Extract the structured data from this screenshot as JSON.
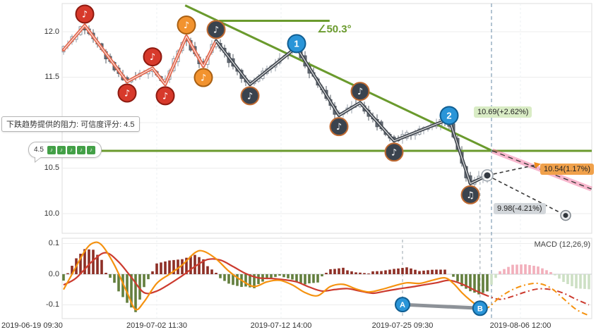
{
  "colors": {
    "trend_green": "#6a9a2d",
    "marker_red": "#d7392b",
    "marker_red_ring": "#8e1a10",
    "marker_orange": "#f2932f",
    "marker_orange_ring": "#a85f12",
    "marker_dark": "#3a434e",
    "marker_dark_ring": "#c06a31",
    "blue_circle": "#2a95d8",
    "blue_circle_ring": "#105e92",
    "zigzag_warm": "#e2654b",
    "zigzag_dark": "#3f454d",
    "hist_pos": "#8e2f26",
    "hist_neg": "#637f3e",
    "hist_proj_pos": "#f2afbb",
    "hist_proj_neg": "#cde0c4",
    "dif_orange": "#f5920f",
    "dea_red": "#cc3b2f",
    "proj_pink": "#f06292",
    "label_green_bg": "#d9ecc5",
    "label_orange_bg": "#f0a14b",
    "label_gray_bg": "#d3d7db",
    "divider": "#7f9cb4",
    "ab_connector": "#8d9298"
  },
  "chart_data": {
    "type": "candlestick",
    "x_axis_labels": [
      "2019-06-19 09:30",
      "2019-07-02 11:30",
      "2019-07-12 14:00",
      "2019-07-25 09:30",
      "2019-08-06 12:00"
    ],
    "price_panel": {
      "y_tick_labels": [
        "12.0",
        "11.5",
        "11.0",
        "10.5",
        "10.0"
      ],
      "y_ticks": [
        12.0,
        11.5,
        11.0,
        10.5,
        10.0
      ],
      "pivots": [
        [
          0,
          11.8
        ],
        [
          5,
          12.07
        ],
        [
          15,
          11.45
        ],
        [
          21,
          11.6
        ],
        [
          24,
          11.42
        ],
        [
          29,
          11.95
        ],
        [
          33,
          11.62
        ],
        [
          36,
          11.9
        ],
        [
          44,
          11.42
        ],
        [
          55,
          11.83
        ],
        [
          65,
          11.08
        ],
        [
          70,
          11.22
        ],
        [
          78,
          10.8
        ],
        [
          91,
          11.04
        ],
        [
          96,
          10.33
        ],
        [
          100,
          10.42
        ]
      ],
      "warm_segments_until": 7,
      "note_markers": [
        {
          "pivot": 1,
          "color": "red",
          "side": "above",
          "glyph": "♪"
        },
        {
          "pivot": 2,
          "color": "red",
          "side": "below",
          "glyph": "♪"
        },
        {
          "pivot": 3,
          "color": "red",
          "side": "above",
          "glyph": "♪"
        },
        {
          "pivot": 4,
          "color": "red",
          "side": "below",
          "glyph": "♪"
        },
        {
          "pivot": 5,
          "color": "orange",
          "side": "above",
          "glyph": "♪"
        },
        {
          "pivot": 6,
          "color": "orange",
          "side": "below",
          "glyph": "♪"
        },
        {
          "pivot": 7,
          "color": "dark",
          "side": "above",
          "glyph": "♪"
        },
        {
          "pivot": 8,
          "color": "dark",
          "side": "below",
          "glyph": "♪"
        },
        {
          "pivot": 10,
          "color": "dark",
          "side": "below",
          "glyph": "♪"
        },
        {
          "pivot": 11,
          "color": "dark",
          "side": "above",
          "glyph": "♪"
        },
        {
          "pivot": 12,
          "color": "dark",
          "side": "below",
          "glyph": "♪"
        },
        {
          "pivot": 14,
          "color": "dark",
          "side": "below",
          "glyph": "♫"
        }
      ],
      "number_markers": [
        {
          "pivot": 9,
          "label": "1"
        },
        {
          "pivot": 13,
          "label": "2"
        }
      ],
      "trendline": {
        "idx1": 28.7,
        "price1": 12.29,
        "idx2": 101.2,
        "price2": 10.69
      },
      "trendline_projection": {
        "idx2": 124.6,
        "price2": 10.27
      },
      "angle_line": {
        "price": 12.12,
        "idx1": 36.7,
        "idx2": 62.8
      },
      "angle_label": "∠50.3°",
      "resistance": {
        "price": 10.69
      },
      "resistance_label": "10.69(+2.62%)",
      "current_price": 10.42,
      "current_divider_idx": 101,
      "projections": [
        {
          "to_idx": 112,
          "to_price": 10.54,
          "style": "arrow",
          "label": "10.54(1.17%)"
        },
        {
          "to_idx": 118.5,
          "to_price": 9.98,
          "style": "rings",
          "label": "9.98(-4.21%)"
        }
      ],
      "tooltip": "下跌趋势提供的阻力: 可信度评分: 4.5",
      "rating": {
        "value": "4.5",
        "stars": 5
      }
    },
    "macd_panel": {
      "label": "MACD (12,26,9)",
      "y_tick_labels": [
        "0.1",
        "0.0",
        "-0.1"
      ],
      "y_ticks": [
        0.1,
        0.0,
        -0.1
      ],
      "projection_start_idx": 100,
      "hist_scale": 1.4,
      "dif": [
        [
          0,
          -0.05
        ],
        [
          2,
          0
        ],
        [
          5,
          0.075
        ],
        [
          7,
          0.102
        ],
        [
          9,
          0.095
        ],
        [
          12,
          0.03
        ],
        [
          15,
          -0.06
        ],
        [
          17,
          -0.115
        ],
        [
          19,
          -0.09
        ],
        [
          22,
          -0.03
        ],
        [
          25,
          0
        ],
        [
          28,
          0.03
        ],
        [
          31,
          0.07
        ],
        [
          33,
          0.075
        ],
        [
          36,
          0.05
        ],
        [
          39,
          0.01
        ],
        [
          42,
          -0.02
        ],
        [
          45,
          -0.04
        ],
        [
          48,
          -0.025
        ],
        [
          51,
          -0.02
        ],
        [
          54,
          -0.035
        ],
        [
          57,
          -0.06
        ],
        [
          60,
          -0.07
        ],
        [
          63,
          -0.04
        ],
        [
          66,
          -0.033
        ],
        [
          69,
          -0.048
        ],
        [
          72,
          -0.058
        ],
        [
          75,
          -0.05
        ],
        [
          78,
          -0.038
        ],
        [
          81,
          -0.028
        ],
        [
          84,
          -0.03
        ],
        [
          87,
          -0.02
        ],
        [
          90,
          -0.012
        ],
        [
          92,
          -0.03
        ],
        [
          94,
          -0.06
        ],
        [
          96,
          -0.085
        ],
        [
          98,
          -0.105
        ],
        [
          100,
          -0.11
        ],
        [
          103,
          -0.075
        ],
        [
          106,
          -0.05
        ],
        [
          109,
          -0.035
        ],
        [
          112,
          -0.03
        ],
        [
          115,
          -0.045
        ],
        [
          118,
          -0.08
        ],
        [
          121,
          -0.115
        ],
        [
          124,
          -0.135
        ]
      ],
      "dea": [
        [
          0,
          -0.035
        ],
        [
          3,
          -0.012
        ],
        [
          7,
          0.045
        ],
        [
          10,
          0.07
        ],
        [
          13,
          0.04
        ],
        [
          16,
          -0.01
        ],
        [
          19,
          -0.06
        ],
        [
          22,
          -0.055
        ],
        [
          25,
          -0.032
        ],
        [
          28,
          -0.005
        ],
        [
          31,
          0.025
        ],
        [
          34,
          0.048
        ],
        [
          37,
          0.046
        ],
        [
          40,
          0.025
        ],
        [
          43,
          0.002
        ],
        [
          46,
          -0.012
        ],
        [
          49,
          -0.014
        ],
        [
          52,
          -0.018
        ],
        [
          55,
          -0.025
        ],
        [
          58,
          -0.042
        ],
        [
          61,
          -0.055
        ],
        [
          64,
          -0.05
        ],
        [
          67,
          -0.047
        ],
        [
          70,
          -0.055
        ],
        [
          73,
          -0.062
        ],
        [
          76,
          -0.055
        ],
        [
          79,
          -0.048
        ],
        [
          82,
          -0.042
        ],
        [
          85,
          -0.035
        ],
        [
          88,
          -0.028
        ],
        [
          91,
          -0.02
        ],
        [
          94,
          -0.032
        ],
        [
          97,
          -0.052
        ],
        [
          100,
          -0.07
        ],
        [
          103,
          -0.082
        ],
        [
          106,
          -0.072
        ],
        [
          109,
          -0.058
        ],
        [
          112,
          -0.048
        ],
        [
          115,
          -0.05
        ],
        [
          118,
          -0.062
        ],
        [
          121,
          -0.082
        ],
        [
          124,
          -0.1
        ]
      ],
      "ab_markers": [
        {
          "idx": 80,
          "value": -0.099,
          "label": "A"
        },
        {
          "idx": 98.3,
          "value": -0.111,
          "label": "B"
        }
      ]
    }
  }
}
